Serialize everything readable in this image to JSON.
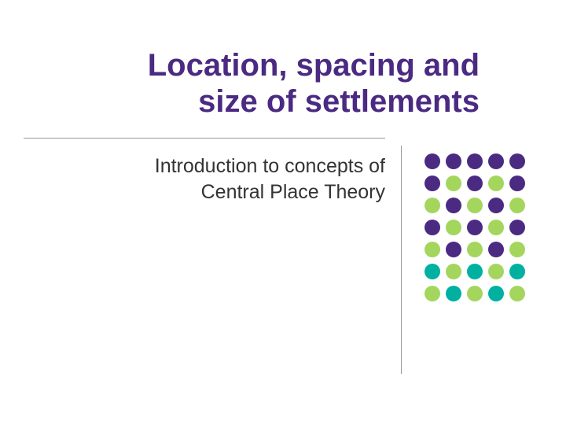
{
  "title": {
    "line1": "Location, spacing and",
    "line2": "size of settlements",
    "color": "#4b2a82",
    "fontsize": 40
  },
  "subtitle": {
    "line1": "Introduction to concepts of",
    "line2": "Central Place Theory",
    "color": "#333333",
    "fontsize": 25
  },
  "divider_color": "#999999",
  "background_color": "#ffffff",
  "dot_grid": {
    "rows": 7,
    "cols": 5,
    "dot_size": 20,
    "gap": 6,
    "colors": [
      [
        "#4b2a82",
        "#4b2a82",
        "#4b2a82",
        "#4b2a82",
        "#4b2a82"
      ],
      [
        "#4b2a82",
        "#a4d65e",
        "#4b2a82",
        "#a4d65e",
        "#4b2a82"
      ],
      [
        "#a4d65e",
        "#4b2a82",
        "#a4d65e",
        "#4b2a82",
        "#a4d65e"
      ],
      [
        "#4b2a82",
        "#a4d65e",
        "#4b2a82",
        "#a4d65e",
        "#4b2a82"
      ],
      [
        "#a4d65e",
        "#4b2a82",
        "#a4d65e",
        "#4b2a82",
        "#a4d65e"
      ],
      [
        "#00b0a0",
        "#a4d65e",
        "#00b0a0",
        "#a4d65e",
        "#00b0a0"
      ],
      [
        "#a4d65e",
        "#00b0a0",
        "#a4d65e",
        "#00b0a0",
        "#a4d65e"
      ]
    ]
  }
}
